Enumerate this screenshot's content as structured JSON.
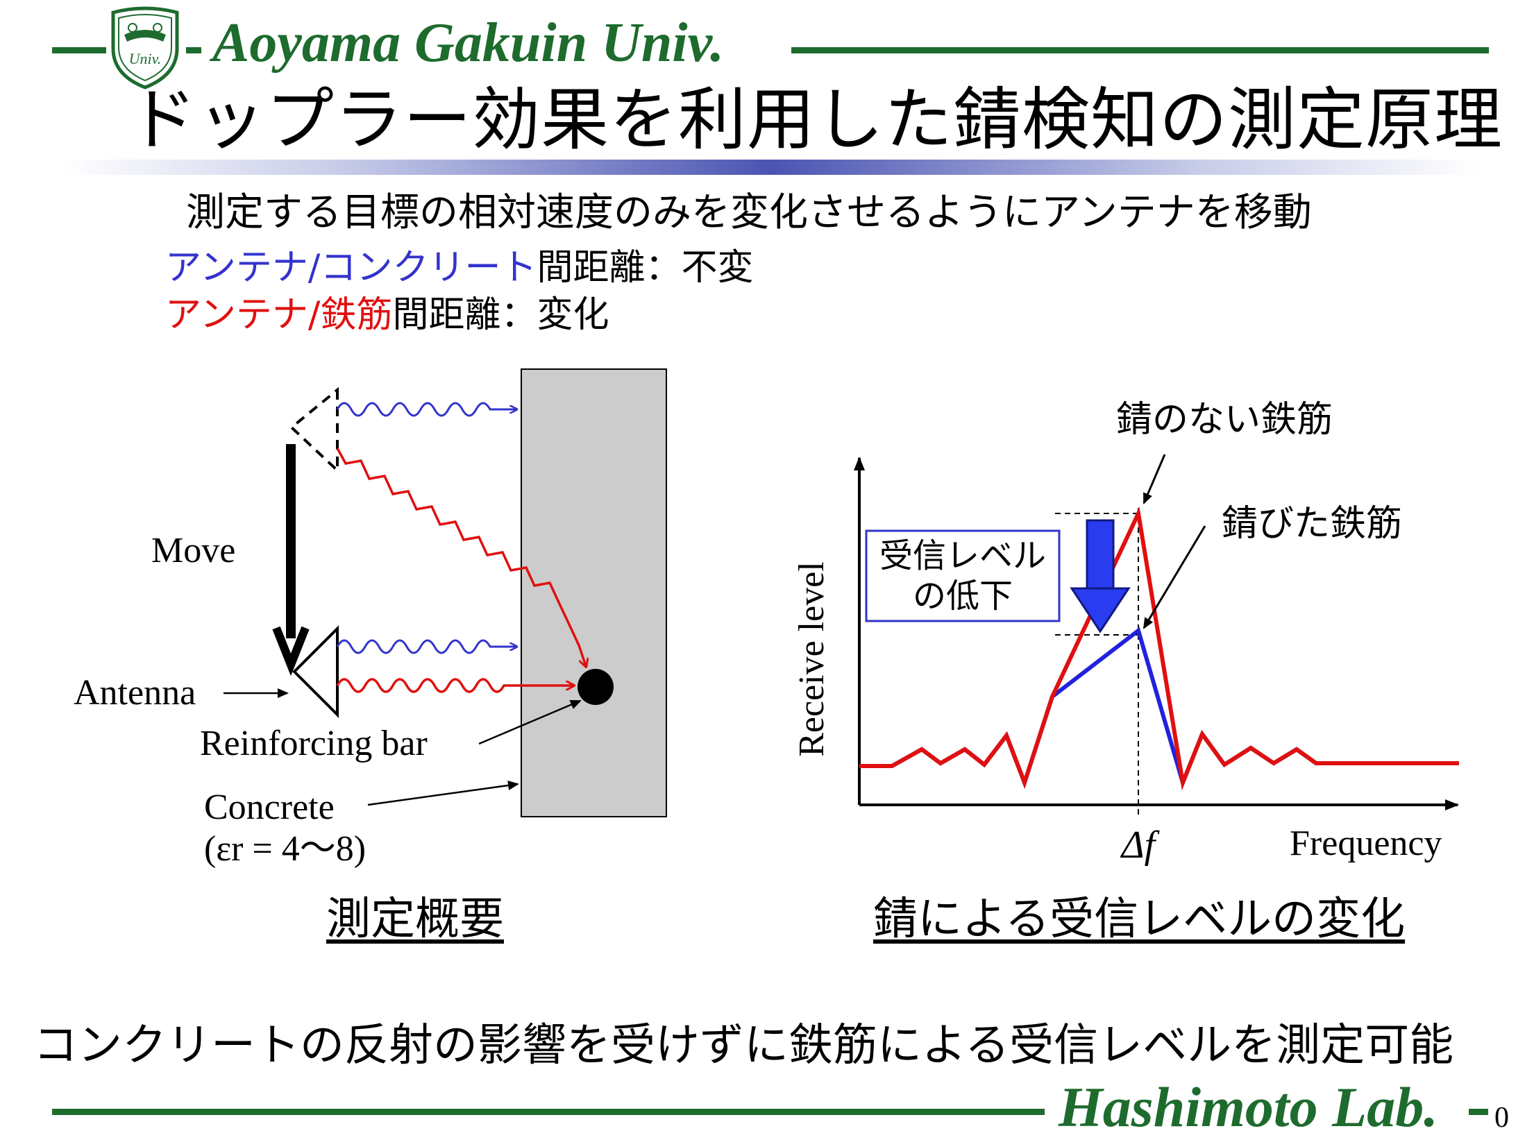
{
  "header": {
    "university": "Aoyama Gakuin Univ.",
    "logo_text": "Univ.",
    "title": "ドップラー効果を利用した錆検知の測定原理",
    "subtitle": "測定する目標の相対速度のみを変化させるようにアンテナを移動"
  },
  "distances": {
    "line1_colored": "アンテナ/コンクリート",
    "line1_rest": "間距離：不変",
    "line2_colored": "アンテナ/鉄筋",
    "line2_rest": "間距離：変化"
  },
  "left_diagram": {
    "move": "Move",
    "antenna": "Antenna",
    "rebar": "Reinforcing bar",
    "concrete": "Concrete",
    "permittivity": "(εr = 4〜8)",
    "caption": "測定概要"
  },
  "right_chart": {
    "ylabel": "Receive level",
    "xlabel": "Frequency",
    "delta_f": "Δf",
    "no_rust": "錆のない鉄筋",
    "rusted": "錆びた鉄筋",
    "drop_box_line1": "受信レベル",
    "drop_box_line2": "の低下",
    "caption": "錆による受信レベルの変化"
  },
  "chart_data": {
    "type": "line",
    "title": "",
    "xlabel": "Frequency",
    "ylabel": "Receive level",
    "x_tick_labels": [
      "Δf"
    ],
    "series": [
      {
        "name": "錆のない鉄筋",
        "color": "#e01010",
        "peak": 1.0
      },
      {
        "name": "錆びた鉄筋",
        "color": "#2222dd",
        "peak": 0.55
      }
    ],
    "annotations": [
      "受信レベルの低下"
    ]
  },
  "footer": {
    "conclusion": "コンクリートの反射の影響を受けずに鉄筋による受信レベルを測定可能",
    "lab": "Hashimoto Lab.",
    "page": "0"
  },
  "colors": {
    "green": "#1e6b2e",
    "blue": "#3333cc",
    "red": "#e01010",
    "concrete": "#cccccc"
  }
}
